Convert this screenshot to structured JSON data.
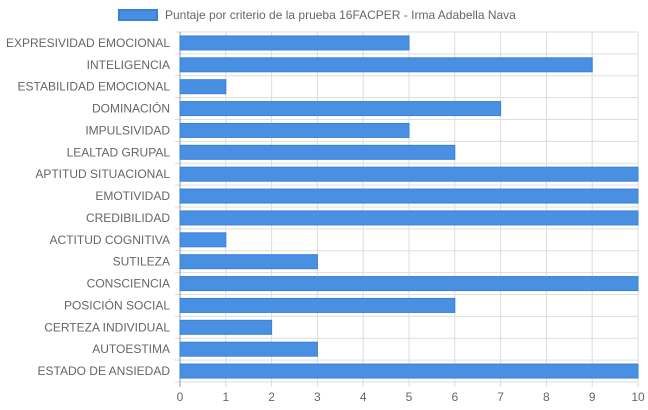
{
  "colors": {
    "bar": "#4a90e2",
    "bar_border": "#3a80d8",
    "grid": "#dddddd",
    "axis": "#999999",
    "text": "#666666"
  },
  "chart_data": {
    "type": "bar",
    "orientation": "horizontal",
    "series": [
      {
        "name": "Puntaje por criterio de la prueba 16FACPER - Irma Adabella Nava",
        "values": [
          5,
          9,
          1,
          7,
          5,
          6,
          10,
          10,
          10,
          1,
          3,
          10,
          6,
          2,
          3,
          10
        ]
      }
    ],
    "categories": [
      "EXPRESIVIDAD EMOCIONAL",
      "INTELIGENCIA",
      "ESTABILIDAD EMOCIONAL",
      "DOMINACIÓN",
      "IMPULSIVIDAD",
      "LEALTAD GRUPAL",
      "APTITUD SITUACIONAL",
      "EMOTIVIDAD",
      "CREDIBILIDAD",
      "ACTITUD COGNITIVA",
      "SUTILEZA",
      "CONSCIENCIA",
      "POSICIÓN SOCIAL",
      "CERTEZA INDIVIDUAL",
      "AUTOESTIMA",
      "ESTADO DE ANSIEDAD"
    ],
    "xlim": [
      0,
      10
    ],
    "xticks": [
      "0",
      "1",
      "2",
      "3",
      "4",
      "5",
      "6",
      "7",
      "8",
      "9",
      "10"
    ],
    "grid": true,
    "legend_position": "top-center"
  }
}
